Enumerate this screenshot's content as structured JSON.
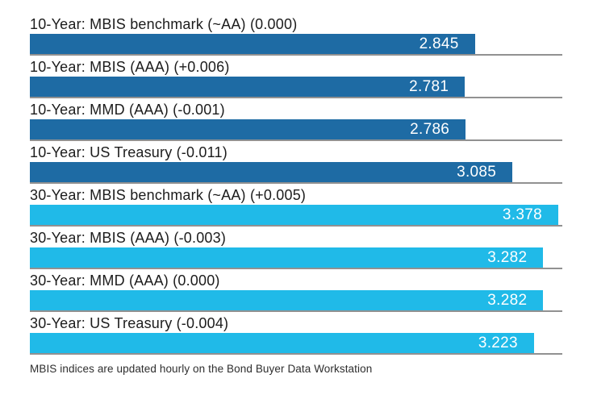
{
  "chart_data": {
    "type": "bar",
    "orientation": "horizontal",
    "title": "",
    "xlabel": "",
    "ylabel": "",
    "xlim": [
      0,
      3.404
    ],
    "grid": false,
    "legend_position": "none",
    "value_labels_shown": true,
    "categories": [
      "10-Year: MBIS benchmark (~AA) (0.000)",
      "10-Year: MBIS (AAA) (+0.006)",
      "10-Year: MMD (AAA) (-0.001)",
      "10-Year: US Treasury (-0.011)",
      "30-Year: MBIS benchmark (~AA) (+0.005)",
      "30-Year: MBIS (AAA) (-0.003)",
      "30-Year: MMD (AAA) (0.000)",
      "30-Year: US Treasury (-0.004)"
    ],
    "bars": [
      {
        "label": "10-Year: MBIS benchmark (~AA) (0.000)",
        "value": 2.845,
        "value_label": "2.845",
        "group": "10-year"
      },
      {
        "label": "10-Year: MBIS (AAA) (+0.006)",
        "value": 2.781,
        "value_label": "2.781",
        "group": "10-year"
      },
      {
        "label": "10-Year: MMD (AAA) (-0.001)",
        "value": 2.786,
        "value_label": "2.786",
        "group": "10-year"
      },
      {
        "label": "10-Year: US Treasury (-0.011)",
        "value": 3.085,
        "value_label": "3.085",
        "group": "10-year"
      },
      {
        "label": "30-Year: MBIS benchmark (~AA) (+0.005)",
        "value": 3.378,
        "value_label": "3.378",
        "group": "30-year"
      },
      {
        "label": "30-Year: MBIS (AAA) (-0.003)",
        "value": 3.282,
        "value_label": "3.282",
        "group": "30-year"
      },
      {
        "label": "30-Year: MMD (AAA) (0.000)",
        "value": 3.282,
        "value_label": "3.282",
        "group": "30-year"
      },
      {
        "label": "30-Year: US Treasury (-0.004)",
        "value": 3.223,
        "value_label": "3.223",
        "group": "30-year"
      }
    ],
    "colors": {
      "10-year": "#1E6BA4",
      "30-year": "#20BAE8",
      "separator": "#919191",
      "label_text": "#1c1c1c",
      "value_text": "#ffffff"
    }
  },
  "footer": {
    "note": "MBIS indices are updated hourly on the Bond Buyer Data Workstation"
  }
}
